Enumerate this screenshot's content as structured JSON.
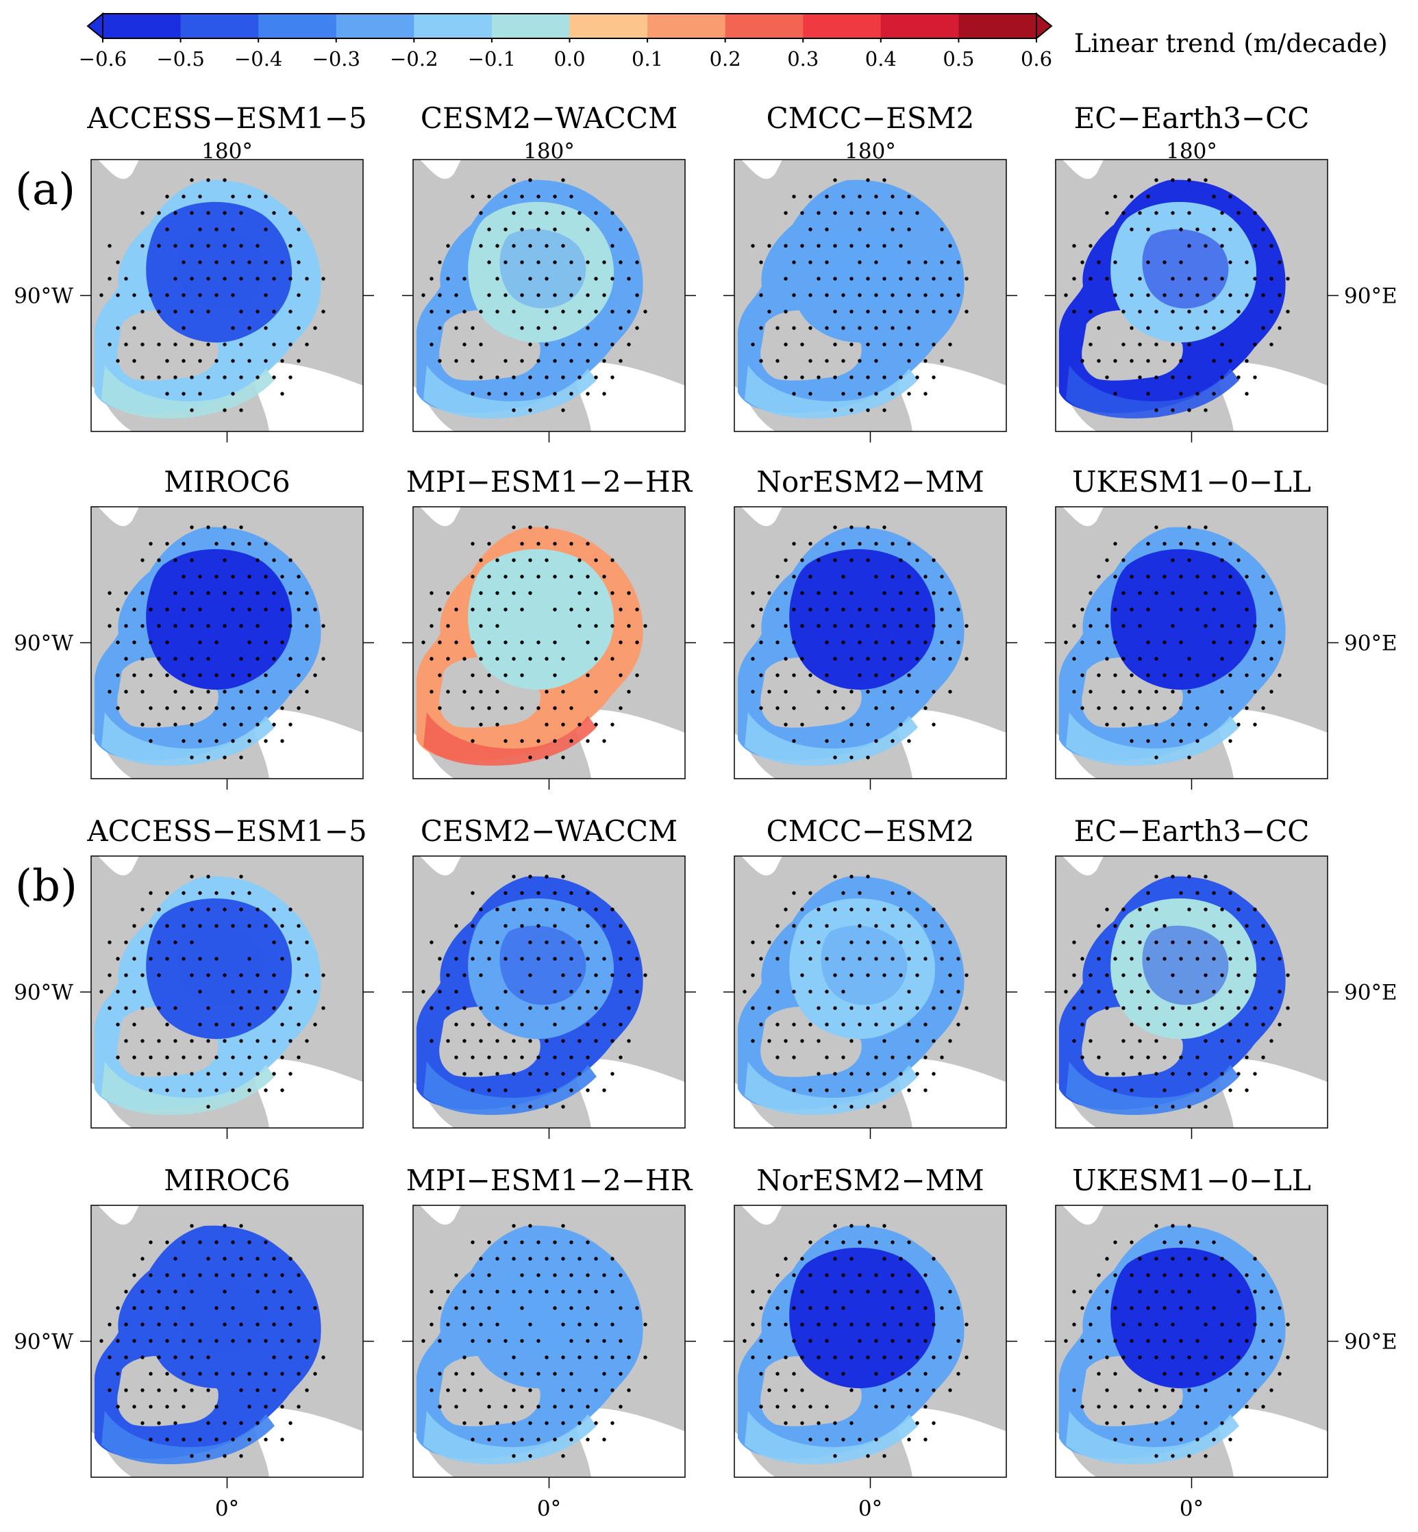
{
  "colorbar": {
    "label": "Linear trend (m/decade)",
    "ticks": [
      "−0.6",
      "−0.5",
      "−0.4",
      "−0.3",
      "−0.2",
      "−0.1",
      "0.0",
      "0.1",
      "0.2",
      "0.3",
      "0.4",
      "0.5",
      "0.6"
    ],
    "colors": [
      "#1a2fe0",
      "#2b58e8",
      "#3f82f0",
      "#61a6f5",
      "#89cdf8",
      "#a8e0e3",
      "#fcc58c",
      "#f99d70",
      "#f36453",
      "#ee3a40",
      "#d61c32",
      "#a51021"
    ]
  },
  "colors": {
    "land": "#c6c6c6",
    "water": "#ffffff",
    "dot": "#000000",
    "frame": "#000000"
  },
  "axis_labels": {
    "top": "180°",
    "bottom": "0°",
    "left": "90°W",
    "right": "90°E"
  },
  "panel_labels": [
    "(a)",
    "(b)"
  ],
  "chart_data": {
    "type": "heatmap",
    "description_units": "m/decade",
    "vmin": -0.6,
    "vmax": 0.6,
    "panels": [
      {
        "group": "a",
        "model": "ACCESS−ESM1−5",
        "central_trend": -0.4,
        "edge_trend": -0.2,
        "stippled": true
      },
      {
        "group": "a",
        "model": "CESM2−WACCM",
        "central_trend": -0.1,
        "edge_trend": -0.3,
        "stippled": true
      },
      {
        "group": "a",
        "model": "CMCC−ESM2",
        "central_trend": -0.3,
        "edge_trend": -0.3,
        "stippled": true
      },
      {
        "group": "a",
        "model": "EC−Earth3−CC",
        "central_trend": -0.2,
        "edge_trend": -0.5,
        "stippled": true
      },
      {
        "group": "a",
        "model": "MIROC6",
        "central_trend": -0.5,
        "edge_trend": -0.3,
        "stippled": true
      },
      {
        "group": "a",
        "model": "MPI−ESM1−2−HR",
        "central_trend": -0.1,
        "edge_trend": 0.1,
        "stippled": true
      },
      {
        "group": "a",
        "model": "NorESM2−MM",
        "central_trend": -0.5,
        "edge_trend": -0.3,
        "stippled": true
      },
      {
        "group": "a",
        "model": "UKESM1−0−LL",
        "central_trend": -0.5,
        "edge_trend": -0.3,
        "stippled": true
      },
      {
        "group": "b",
        "model": "ACCESS−ESM1−5",
        "central_trend": -0.4,
        "edge_trend": -0.2,
        "stippled": true
      },
      {
        "group": "b",
        "model": "CESM2−WACCM",
        "central_trend": -0.3,
        "edge_trend": -0.4,
        "stippled": true
      },
      {
        "group": "b",
        "model": "CMCC−ESM2",
        "central_trend": -0.2,
        "edge_trend": -0.3,
        "stippled": true
      },
      {
        "group": "b",
        "model": "EC−Earth3−CC",
        "central_trend": -0.1,
        "edge_trend": -0.4,
        "stippled": true
      },
      {
        "group": "b",
        "model": "MIROC6",
        "central_trend": -0.4,
        "edge_trend": -0.4,
        "stippled": true
      },
      {
        "group": "b",
        "model": "MPI−ESM1−2−HR",
        "central_trend": -0.3,
        "edge_trend": -0.3,
        "stippled": true
      },
      {
        "group": "b",
        "model": "NorESM2−MM",
        "central_trend": -0.5,
        "edge_trend": -0.3,
        "stippled": true
      },
      {
        "group": "b",
        "model": "UKESM1−0−LL",
        "central_trend": -0.5,
        "edge_trend": -0.3,
        "stippled": true
      }
    ]
  }
}
